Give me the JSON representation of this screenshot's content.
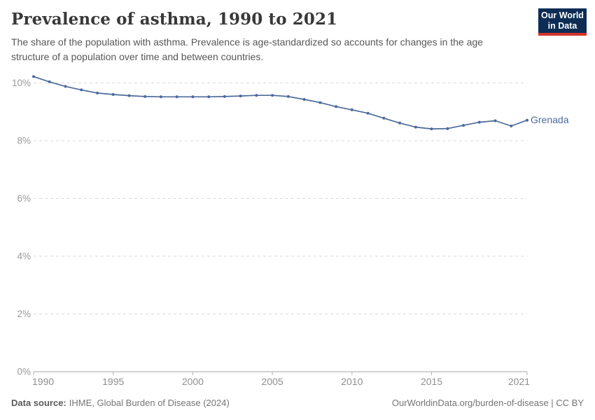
{
  "header": {
    "title": "Prevalence of asthma, 1990 to 2021",
    "subtitle": "The share of the population with asthma. Prevalence is age-standardized so accounts for changes in the age\nstructure of a population over time and between countries."
  },
  "logo": {
    "line1": "Our World",
    "line2": "in Data",
    "bg_color": "#0d2d55",
    "accent_color": "#d5342c"
  },
  "footer": {
    "source_label": "Data source:",
    "source_text": "IHME, Global Burden of Disease (2024)",
    "credit": "OurWorldinData.org/burden-of-disease | CC BY"
  },
  "chart_data": {
    "type": "line",
    "title": "Prevalence of asthma, 1990 to 2021",
    "xlabel": "",
    "ylabel": "",
    "xlim": [
      1990,
      2021
    ],
    "ylim": [
      0,
      10.5
    ],
    "grid": "horizontal-dashed",
    "legend_position": "end-of-line-label",
    "x_ticks": [
      1990,
      1995,
      2000,
      2005,
      2010,
      2015,
      2021
    ],
    "y_ticks": [
      0,
      2,
      4,
      6,
      8,
      10
    ],
    "y_tick_suffix": "%",
    "series": [
      {
        "name": "Grenada",
        "color": "#4C6A9C",
        "x": [
          1990,
          1991,
          1992,
          1993,
          1994,
          1995,
          1996,
          1997,
          1998,
          1999,
          2000,
          2001,
          2002,
          2003,
          2004,
          2005,
          2006,
          2007,
          2008,
          2009,
          2010,
          2011,
          2012,
          2013,
          2014,
          2015,
          2016,
          2017,
          2018,
          2019,
          2020,
          2021
        ],
        "values": [
          10.22,
          10.04,
          9.88,
          9.76,
          9.65,
          9.6,
          9.56,
          9.53,
          9.52,
          9.52,
          9.52,
          9.52,
          9.53,
          9.55,
          9.57,
          9.57,
          9.53,
          9.43,
          9.32,
          9.18,
          9.07,
          8.95,
          8.78,
          8.61,
          8.47,
          8.41,
          8.42,
          8.53,
          8.64,
          8.69,
          8.51,
          8.71
        ]
      }
    ],
    "style": {
      "gridline_color": "#d9d9d9",
      "axis_color": "#a5a5a5",
      "tick_color": "#b3b3b3",
      "tick_label_color": "#8f8f8f"
    }
  }
}
